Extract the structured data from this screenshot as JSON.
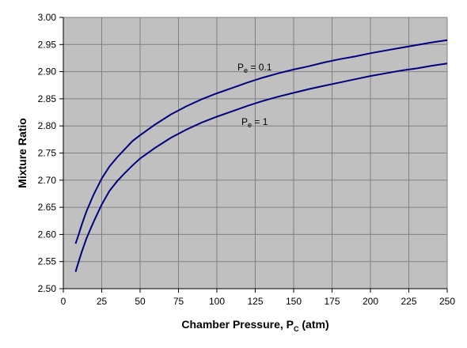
{
  "chart_data": {
    "type": "line",
    "title": "",
    "xlabel": "Chamber Pressure, P",
    "xlabel_subscript": "C",
    "xlabel_suffix": " (atm)",
    "ylabel": "Mixture Ratio",
    "xlim": [
      0,
      250
    ],
    "ylim": [
      2.5,
      3.0
    ],
    "xticks": [
      0,
      25,
      50,
      75,
      100,
      125,
      150,
      175,
      200,
      225,
      250
    ],
    "xtick_labels": [
      "0",
      "25",
      "50",
      "75",
      "100",
      "125",
      "150",
      "175",
      "200",
      "225",
      "250"
    ],
    "yticks": [
      2.5,
      2.55,
      2.6,
      2.65,
      2.7,
      2.75,
      2.8,
      2.85,
      2.9,
      2.95,
      3.0
    ],
    "ytick_labels": [
      "2.50",
      "2.55",
      "2.60",
      "2.65",
      "2.70",
      "2.75",
      "2.80",
      "2.85",
      "2.90",
      "2.95",
      "3.00"
    ],
    "grid": true,
    "plot_background": "#c0c0c0",
    "line_color": "#000080",
    "series": [
      {
        "x": [
          8,
          10,
          12,
          15,
          18,
          20,
          25,
          30,
          35,
          40,
          45,
          50,
          60,
          70,
          80,
          90,
          100,
          110,
          120,
          130,
          140,
          150,
          160,
          170,
          180,
          190,
          200,
          210,
          220,
          230,
          240,
          250
        ],
        "y": [
          2.583,
          2.6,
          2.618,
          2.642,
          2.662,
          2.675,
          2.703,
          2.725,
          2.742,
          2.757,
          2.772,
          2.783,
          2.803,
          2.821,
          2.836,
          2.849,
          2.86,
          2.87,
          2.88,
          2.889,
          2.897,
          2.904,
          2.91,
          2.917,
          2.923,
          2.928,
          2.934,
          2.939,
          2.944,
          2.949,
          2.954,
          2.958
        ]
      },
      {
        "x": [
          8,
          10,
          12,
          15,
          18,
          20,
          25,
          30,
          35,
          40,
          45,
          50,
          60,
          70,
          80,
          90,
          100,
          110,
          120,
          130,
          140,
          150,
          160,
          170,
          180,
          190,
          200,
          210,
          220,
          230,
          240,
          250
        ],
        "y": [
          2.531,
          2.55,
          2.568,
          2.592,
          2.612,
          2.625,
          2.655,
          2.68,
          2.698,
          2.713,
          2.727,
          2.74,
          2.76,
          2.778,
          2.793,
          2.806,
          2.817,
          2.827,
          2.837,
          2.846,
          2.854,
          2.861,
          2.868,
          2.874,
          2.88,
          2.886,
          2.892,
          2.897,
          2.902,
          2.906,
          2.911,
          2.915
        ]
      }
    ],
    "annotations": [
      {
        "prefix": "P",
        "subscript": "e",
        "suffix": " = 0.1",
        "series": 0
      },
      {
        "prefix": "P",
        "subscript": "e",
        "suffix": " = 1",
        "series": 1
      }
    ]
  }
}
